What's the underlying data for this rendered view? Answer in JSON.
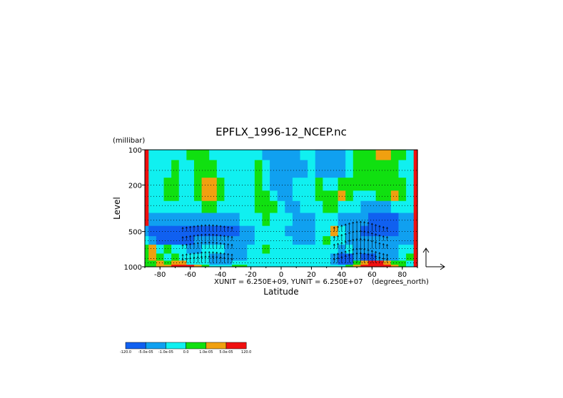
{
  "chart_data": {
    "type": "heatmap",
    "title": "EPFLX_1996-12_NCEP.nc",
    "xlabel": "Latitude",
    "ylabel": "Level",
    "y_unit": "(millibar)",
    "x_unit": "(degrees_north)",
    "scale_note": "XUNIT = 6.250E+09, YUNIT = 6.250E+07",
    "xlim": [
      -90,
      90
    ],
    "ylim": [
      1000,
      100
    ],
    "y_scale": "log",
    "x_ticks": [
      -80,
      -60,
      -40,
      -20,
      0,
      20,
      40,
      60,
      80
    ],
    "x_tick_labels": [
      "-80",
      "-60",
      "-40",
      "-20",
      "0",
      "20",
      "40",
      "60",
      "80"
    ],
    "y_ticks": [
      100,
      200,
      500,
      1000
    ],
    "y_tick_labels": [
      "100",
      "200",
      "500",
      "1000"
    ],
    "grid_levels": [
      100,
      150,
      200,
      250,
      300,
      400,
      500,
      600,
      700,
      850,
      925,
      1000
    ],
    "colorbar": {
      "position": "bottom-left",
      "colors": [
        "#1060f0",
        "#10a0f0",
        "#10f0f0",
        "#10e010",
        "#f0a010",
        "#f01010"
      ],
      "labels": [
        "-120.0",
        "-5.0e-05",
        "-1.0e-05",
        "0.0",
        "1.0e-05",
        "5.0e-05",
        "120.0"
      ]
    },
    "lat_grid": [
      -90,
      -85,
      -80,
      -75,
      -70,
      -65,
      -60,
      -55,
      -50,
      -45,
      -40,
      -35,
      -30,
      -25,
      -20,
      -15,
      -10,
      -5,
      0,
      5,
      10,
      15,
      20,
      25,
      30,
      35,
      40,
      45,
      50,
      55,
      60,
      65,
      70,
      75,
      80,
      85,
      90
    ],
    "field_note": "values are contour class indices 0..5 matching colorbar colors; rows from 100 mb to 1000 mb",
    "field": [
      [
        5,
        2,
        2,
        2,
        2,
        2,
        3,
        3,
        3,
        2,
        2,
        2,
        2,
        2,
        2,
        2,
        1,
        1,
        1,
        1,
        1,
        2,
        2,
        1,
        1,
        1,
        1,
        2,
        3,
        3,
        3,
        4,
        4,
        3,
        3,
        2,
        5
      ],
      [
        5,
        2,
        2,
        2,
        3,
        2,
        2,
        3,
        3,
        3,
        2,
        2,
        2,
        2,
        2,
        3,
        2,
        1,
        1,
        1,
        1,
        1,
        2,
        1,
        1,
        1,
        1,
        2,
        3,
        3,
        3,
        3,
        3,
        3,
        2,
        2,
        5
      ],
      [
        5,
        2,
        2,
        3,
        3,
        2,
        2,
        3,
        4,
        4,
        3,
        2,
        2,
        2,
        2,
        3,
        2,
        1,
        1,
        1,
        2,
        2,
        2,
        3,
        2,
        2,
        3,
        3,
        3,
        3,
        3,
        3,
        3,
        3,
        3,
        2,
        5
      ],
      [
        5,
        2,
        2,
        3,
        3,
        2,
        2,
        3,
        4,
        4,
        3,
        2,
        2,
        2,
        2,
        3,
        3,
        2,
        1,
        1,
        2,
        2,
        2,
        3,
        3,
        3,
        4,
        3,
        2,
        2,
        2,
        3,
        3,
        4,
        3,
        2,
        5
      ],
      [
        5,
        2,
        2,
        2,
        2,
        2,
        2,
        2,
        3,
        3,
        2,
        2,
        2,
        2,
        2,
        3,
        3,
        3,
        2,
        1,
        1,
        2,
        2,
        2,
        3,
        3,
        2,
        2,
        2,
        1,
        1,
        1,
        1,
        2,
        2,
        2,
        5
      ],
      [
        5,
        1,
        1,
        1,
        1,
        1,
        1,
        1,
        1,
        1,
        1,
        1,
        1,
        2,
        2,
        2,
        3,
        2,
        2,
        2,
        1,
        1,
        1,
        2,
        2,
        2,
        1,
        1,
        1,
        1,
        0,
        0,
        0,
        0,
        1,
        1,
        5
      ],
      [
        1,
        0,
        0,
        0,
        0,
        0,
        0,
        0,
        0,
        0,
        0,
        0,
        0,
        1,
        1,
        2,
        2,
        2,
        2,
        1,
        1,
        1,
        1,
        2,
        2,
        4,
        2,
        1,
        1,
        0,
        0,
        0,
        0,
        0,
        1,
        1,
        5
      ],
      [
        2,
        1,
        0,
        0,
        0,
        0,
        0,
        1,
        1,
        1,
        1,
        1,
        1,
        1,
        1,
        2,
        2,
        2,
        2,
        2,
        1,
        1,
        1,
        2,
        3,
        2,
        2,
        1,
        1,
        1,
        1,
        1,
        1,
        1,
        1,
        1,
        5
      ],
      [
        3,
        4,
        2,
        3,
        2,
        2,
        1,
        1,
        2,
        2,
        2,
        1,
        1,
        1,
        2,
        2,
        3,
        2,
        2,
        2,
        2,
        2,
        2,
        2,
        2,
        2,
        1,
        2,
        1,
        1,
        1,
        1,
        1,
        1,
        2,
        2,
        5
      ],
      [
        3,
        4,
        3,
        2,
        3,
        2,
        2,
        2,
        2,
        1,
        1,
        1,
        1,
        1,
        2,
        2,
        2,
        2,
        2,
        2,
        2,
        2,
        2,
        2,
        2,
        1,
        0,
        0,
        1,
        0,
        0,
        1,
        1,
        1,
        2,
        3,
        5
      ],
      [
        3,
        3,
        4,
        3,
        4,
        4,
        2,
        2,
        2,
        1,
        1,
        1,
        2,
        2,
        2,
        2,
        2,
        2,
        2,
        2,
        2,
        2,
        2,
        2,
        2,
        1,
        0,
        0,
        3,
        4,
        5,
        5,
        4,
        3,
        3,
        2,
        5
      ],
      [
        3,
        3,
        4,
        4,
        5,
        5,
        5,
        4,
        3,
        2,
        2,
        2,
        3,
        3,
        2,
        2,
        2,
        2,
        2,
        2,
        2,
        2,
        2,
        2,
        2,
        2,
        2,
        3,
        4,
        5,
        5,
        5,
        5,
        4,
        3,
        2,
        5
      ]
    ],
    "vector_field_note": "EP flux arrows; upward-pointing arrows concentrated over 25N-75N and 65S-30S in the lower troposphere",
    "vector_reference": "right-angle reference arrows beside the plot"
  }
}
